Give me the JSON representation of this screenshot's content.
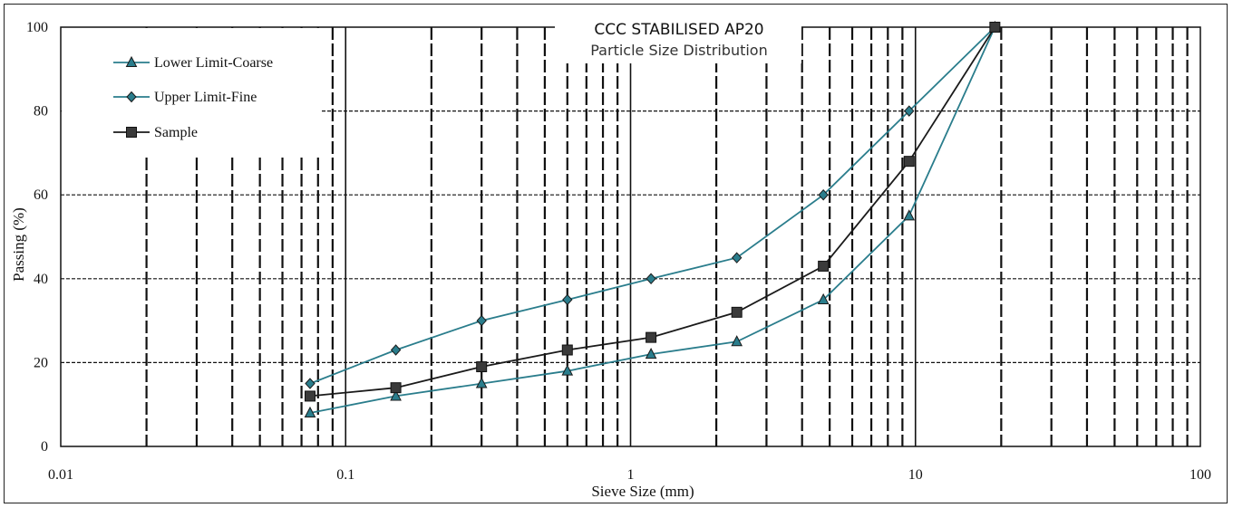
{
  "chart_data": {
    "type": "line",
    "title": "CCC STABILISED  AP20",
    "subtitle": "Particle Size Distribution",
    "xlabel": "Sieve Size (mm)",
    "ylabel": "Passing (%)",
    "x_scale": "log",
    "xlim": [
      0.01,
      100
    ],
    "ylim": [
      0,
      100
    ],
    "x_ticks": [
      "0.01",
      "0.1",
      "1",
      "10",
      "100"
    ],
    "y_ticks": [
      "0",
      "20",
      "40",
      "60",
      "80",
      "100"
    ],
    "grid": true,
    "legend_position": "top-left",
    "series": [
      {
        "name": "Lower Limit-Coarse",
        "color": "#2a7d8c",
        "marker": "triangle",
        "x": [
          0.075,
          0.15,
          0.3,
          0.6,
          1.18,
          2.36,
          4.75,
          9.5,
          19
        ],
        "y": [
          8,
          12,
          15,
          18,
          22,
          25,
          35,
          55,
          100
        ]
      },
      {
        "name": "Upper Limit-Fine",
        "color": "#2a7d8c",
        "marker": "diamond",
        "x": [
          0.075,
          0.15,
          0.3,
          0.6,
          1.18,
          2.36,
          4.75,
          9.5,
          19
        ],
        "y": [
          15,
          23,
          30,
          35,
          40,
          45,
          60,
          80,
          100
        ]
      },
      {
        "name": "Sample",
        "color": "#1a1a1a",
        "marker": "square",
        "x": [
          0.075,
          0.15,
          0.3,
          0.6,
          1.18,
          2.36,
          4.75,
          9.5,
          19
        ],
        "y": [
          12,
          14,
          19,
          23,
          26,
          32,
          43,
          68,
          100
        ]
      }
    ]
  }
}
